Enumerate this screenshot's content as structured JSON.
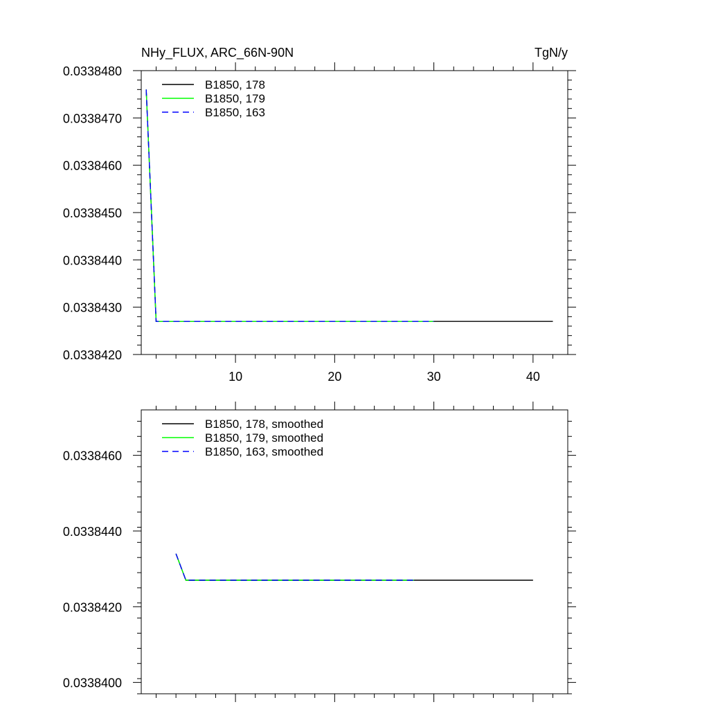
{
  "colors": {
    "black": "#000000",
    "green": "#00ff00",
    "blue": "#0000ff",
    "frame": "#000000"
  },
  "chart_data": [
    {
      "type": "line",
      "title": "NHy_FLUX, ARC_66N-90N",
      "units": "TgN/y",
      "xlim": [
        0.5,
        43.5
      ],
      "ylim": [
        0.033842,
        0.033848
      ],
      "xticks": [
        10,
        20,
        30,
        40
      ],
      "xtick_labels": [
        "10",
        "20",
        "30",
        "40"
      ],
      "yticks": [
        0.033842,
        0.033843,
        0.033844,
        0.033845,
        0.033846,
        0.033847,
        0.033848
      ],
      "ytick_labels": [
        "0.0338420",
        "0.0338430",
        "0.0338440",
        "0.0338450",
        "0.0338460",
        "0.0338470",
        "0.0338480"
      ],
      "legend_position": "top-left",
      "series": [
        {
          "name": "B1850, 178",
          "color": "#000000",
          "dash": "solid",
          "x_start": 1,
          "x_end": 42,
          "y_points": [
            [
              1,
              0.0338476
            ],
            [
              2,
              0.0338427
            ],
            [
              42,
              0.0338427
            ]
          ]
        },
        {
          "name": "B1850, 179",
          "color": "#00ff00",
          "dash": "solid",
          "x_start": 1,
          "x_end": 30,
          "y_points": [
            [
              1,
              0.0338476
            ],
            [
              2,
              0.0338427
            ],
            [
              30,
              0.0338427
            ]
          ]
        },
        {
          "name": "B1850, 163",
          "color": "#0000ff",
          "dash": "dashed",
          "x_start": 1,
          "x_end": 30,
          "y_points": [
            [
              1,
              0.0338476
            ],
            [
              2,
              0.0338427
            ],
            [
              30,
              0.0338427
            ]
          ]
        }
      ]
    },
    {
      "type": "line",
      "title": "",
      "units": "",
      "xlim": [
        0.5,
        43.5
      ],
      "ylim": [
        0.0338397,
        0.0338472
      ],
      "xticks": [
        10,
        20,
        30,
        40
      ],
      "xtick_labels": [
        "",
        "",
        "",
        ""
      ],
      "yticks": [
        0.03384,
        0.033842,
        0.033844,
        0.033846
      ],
      "ytick_labels": [
        "0.0338400",
        "0.0338420",
        "0.0338440",
        "0.0338460"
      ],
      "legend_position": "top-left",
      "series": [
        {
          "name": "B1850, 178, smoothed",
          "color": "#000000",
          "dash": "solid",
          "y_points": [
            [
              4,
              0.0338434
            ],
            [
              5,
              0.0338427
            ],
            [
              40,
              0.0338427
            ]
          ]
        },
        {
          "name": "B1850, 179, smoothed",
          "color": "#00ff00",
          "dash": "solid",
          "y_points": [
            [
              4,
              0.0338434
            ],
            [
              5,
              0.0338427
            ],
            [
              28,
              0.0338427
            ]
          ]
        },
        {
          "name": "B1850, 163, smoothed",
          "color": "#0000ff",
          "dash": "dashed",
          "y_points": [
            [
              4,
              0.0338434
            ],
            [
              5,
              0.0338427
            ],
            [
              28,
              0.0338427
            ]
          ]
        }
      ]
    }
  ]
}
